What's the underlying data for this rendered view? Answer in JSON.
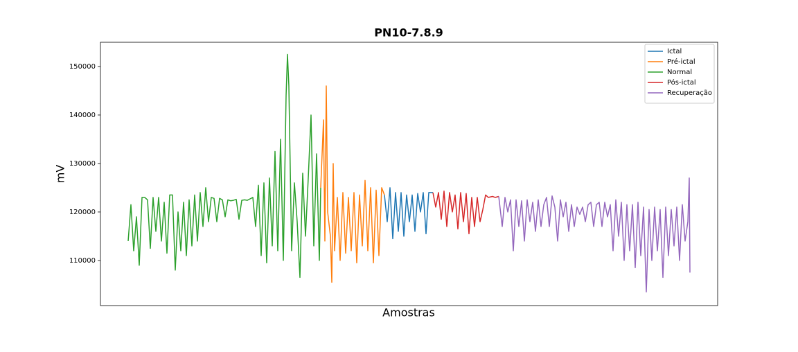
{
  "chart_data": {
    "type": "line",
    "title": "PN10-7.8.9",
    "xlabel": "Amostras",
    "ylabel": "mV",
    "xlim": [
      -40,
      851
    ],
    "ylim": [
      100700,
      155000
    ],
    "yticks": [
      110000,
      120000,
      130000,
      140000,
      150000
    ],
    "legend": "upper right",
    "series": [
      {
        "name": "Ictal",
        "color": "#1f77b4",
        "x": [
          370,
          374,
          378,
          382,
          386,
          390,
          394,
          398,
          402,
          406,
          410,
          414,
          418,
          422,
          426,
          430,
          434,
          440
        ],
        "values": [
          123500,
          118000,
          125000,
          114500,
          124000,
          116000,
          124000,
          115000,
          123500,
          118000,
          123500,
          116000,
          123800,
          120000,
          124000,
          115500,
          124000,
          124000
        ]
      },
      {
        "name": "Pré-ictal",
        "color": "#ff7f0e",
        "x": [
          278,
          282,
          284,
          286,
          288,
          292,
          294,
          296,
          298,
          302,
          306,
          310,
          314,
          318,
          322,
          326,
          330,
          334,
          338,
          342,
          346,
          350,
          354,
          358,
          362,
          366,
          370
        ],
        "values": [
          125000,
          139000,
          114000,
          146000,
          120000,
          115000,
          105500,
          130000,
          112000,
          123000,
          110000,
          124000,
          111500,
          123000,
          112000,
          124000,
          109500,
          123500,
          113000,
          126500,
          112000,
          125000,
          109500,
          124500,
          111000,
          125000,
          123500
        ]
      },
      {
        "name": "Normal",
        "color": "#2ca02c",
        "x": [
          0,
          4,
          8,
          12,
          16,
          20,
          24,
          28,
          32,
          36,
          40,
          44,
          48,
          52,
          56,
          60,
          64,
          68,
          72,
          76,
          80,
          84,
          88,
          92,
          96,
          100,
          104,
          108,
          112,
          116,
          120,
          124,
          128,
          132,
          136,
          140,
          144,
          148,
          152,
          156,
          160,
          164,
          168,
          172,
          176,
          180,
          184,
          188,
          192,
          196,
          200,
          204,
          208,
          212,
          216,
          220,
          224,
          228,
          230,
          232,
          236,
          240,
          244,
          248,
          252,
          256,
          260,
          264,
          268,
          272,
          276,
          278
        ],
        "values": [
          114000,
          121500,
          112000,
          119000,
          109000,
          123000,
          123000,
          122500,
          112500,
          123000,
          116000,
          123000,
          114000,
          122000,
          111500,
          123500,
          123500,
          108000,
          120000,
          112000,
          122000,
          111000,
          122500,
          113000,
          123500,
          114000,
          124000,
          117000,
          125000,
          118000,
          123000,
          122800,
          118000,
          122800,
          122500,
          119000,
          122500,
          122300,
          122400,
          122600,
          118500,
          122400,
          122500,
          122400,
          122700,
          123000,
          117000,
          125500,
          111000,
          126000,
          109500,
          127000,
          113000,
          132500,
          112000,
          135000,
          110000,
          144000,
          152500,
          146000,
          112000,
          126000,
          118000,
          106500,
          128000,
          115000,
          127000,
          140000,
          113000,
          132000,
          110000,
          125000
        ]
      },
      {
        "name": "Pós-ictal",
        "color": "#d62728",
        "x": [
          440,
          444,
          448,
          452,
          456,
          460,
          464,
          468,
          472,
          476,
          480,
          484,
          488,
          492,
          496,
          500,
          504,
          508,
          512,
          516,
          520,
          526,
          530,
          535
        ],
        "values": [
          124000,
          121000,
          124000,
          118500,
          124300,
          117000,
          124000,
          120000,
          123500,
          116500,
          124000,
          118000,
          123800,
          115500,
          123000,
          117000,
          123000,
          118000,
          120500,
          123500,
          123000,
          123200,
          123000,
          123200
        ]
      },
      {
        "name": "Recuperação",
        "color": "#9467bd",
        "x": [
          535,
          540,
          544,
          548,
          552,
          556,
          560,
          564,
          568,
          572,
          576,
          580,
          584,
          588,
          592,
          596,
          600,
          604,
          608,
          612,
          616,
          620,
          624,
          628,
          632,
          636,
          640,
          644,
          648,
          652,
          656,
          660,
          664,
          668,
          672,
          676,
          680,
          684,
          688,
          692,
          696,
          700,
          704,
          708,
          712,
          716,
          720,
          724,
          728,
          732,
          736,
          740,
          744,
          748,
          752,
          756,
          760,
          764,
          768,
          772,
          776,
          780,
          784,
          788,
          792,
          796,
          800,
          804,
          808,
          810,
          811
        ],
        "values": [
          123200,
          117000,
          123000,
          120000,
          122500,
          112000,
          122500,
          117000,
          122300,
          114000,
          122500,
          118000,
          122000,
          116000,
          122500,
          117000,
          121500,
          123000,
          117000,
          123300,
          121000,
          114000,
          122500,
          119000,
          122000,
          116000,
          121500,
          117000,
          121000,
          119500,
          121000,
          118000,
          121500,
          122000,
          117000,
          121500,
          122000,
          117000,
          122000,
          119000,
          121500,
          112000,
          122500,
          115000,
          122000,
          110000,
          121500,
          112000,
          121500,
          108500,
          122000,
          111000,
          121000,
          103500,
          120500,
          110000,
          121000,
          112000,
          120500,
          106500,
          121000,
          111000,
          120500,
          113000,
          121000,
          110000,
          121500,
          114000,
          118000,
          127000,
          107500
        ]
      }
    ]
  }
}
